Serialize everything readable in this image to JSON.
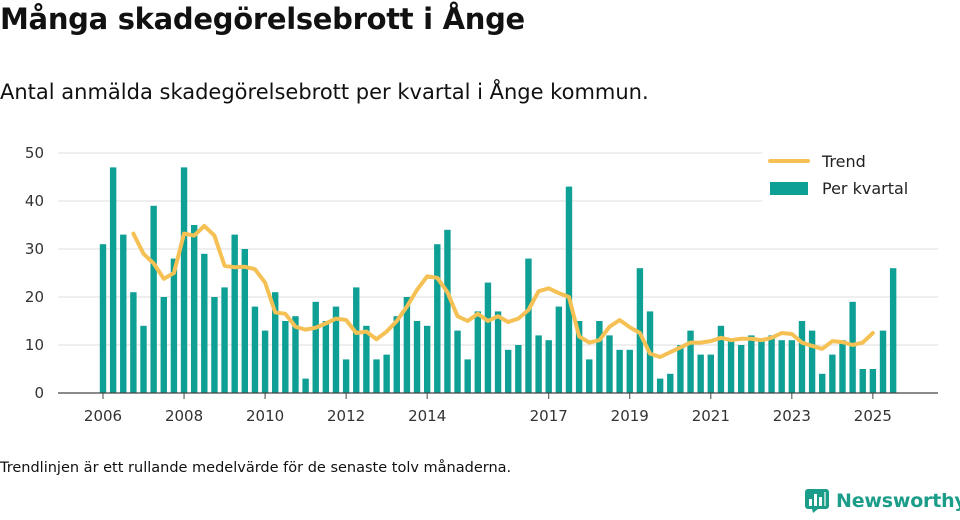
{
  "title": "Många skadegörelsebrott i Ånge",
  "subtitle": "Antal anmälda skadegörelsebrott per kvartal i Ånge kommun.",
  "footnote": "Trendlinjen är ett rullande medelvärde för de senaste tolv månaderna.",
  "brand": {
    "name": "Newsworthy",
    "icon": "newsworthy-logo-icon"
  },
  "colors": {
    "bar": "#0fa095",
    "trend": "#f5c155",
    "grid": "#dddddd",
    "axis": "#444444"
  },
  "chart_data": {
    "type": "bar",
    "title": "Antal anmälda skadegörelsebrott per kvartal i Ånge kommun.",
    "xlabel": "",
    "ylabel": "",
    "ylim": [
      0,
      50
    ],
    "y_ticks": [
      0,
      10,
      20,
      30,
      40,
      50
    ],
    "x_ticks": [
      {
        "label": "2006",
        "index": 0
      },
      {
        "label": "2008",
        "index": 8
      },
      {
        "label": "2010",
        "index": 16
      },
      {
        "label": "2012",
        "index": 24
      },
      {
        "label": "2014",
        "index": 32
      },
      {
        "label": "2017",
        "index": 44
      },
      {
        "label": "2019",
        "index": 52
      },
      {
        "label": "2021",
        "index": 60
      },
      {
        "label": "2023",
        "index": 68
      },
      {
        "label": "2025",
        "index": 76
      }
    ],
    "legend_position": "top-right",
    "series": [
      {
        "name": "Per kvartal",
        "kind": "bar",
        "values": [
          31,
          47,
          33,
          21,
          14,
          39,
          20,
          28,
          47,
          35,
          29,
          20,
          22,
          33,
          30,
          18,
          13,
          21,
          15,
          16,
          3,
          19,
          15,
          18,
          7,
          22,
          14,
          7,
          8,
          16,
          20,
          15,
          14,
          31,
          34,
          13,
          7,
          17,
          23,
          17,
          9,
          10,
          28,
          12,
          11,
          18,
          43,
          15,
          7,
          15,
          12,
          9,
          9,
          26,
          17,
          3,
          4,
          10,
          13,
          8,
          8,
          14,
          11,
          10,
          12,
          11,
          12,
          11,
          11,
          15,
          13,
          4,
          8,
          11,
          19,
          5,
          5,
          13,
          26
        ]
      },
      {
        "name": "Trend",
        "kind": "line",
        "start_index": 3,
        "values": [
          33.2,
          29,
          27,
          23.8,
          25,
          33.2,
          32.8,
          34.8,
          32.8,
          26.5,
          26.2,
          26.3,
          25.8,
          23,
          16.8,
          16.5,
          13.8,
          13.2,
          13.6,
          14.5,
          15.5,
          15.2,
          12.5,
          12.8,
          11.2,
          12.8,
          15,
          18,
          21.5,
          24.3,
          24,
          21,
          16,
          15,
          16.5,
          15,
          16,
          14.8,
          15.5,
          17.3,
          21.2,
          21.8,
          20.8,
          20,
          11.8,
          10.5,
          11,
          13.8,
          15.2,
          13.7,
          12.5,
          8.2,
          7.5,
          8.5,
          9.5,
          10.5,
          10.5,
          10.8,
          11.5,
          11,
          11.3,
          11.3,
          11,
          11.5,
          12.5,
          12.3,
          10.5,
          9.8,
          9.2,
          10.8,
          10.6,
          10,
          10.5,
          12.5
        ]
      }
    ]
  }
}
